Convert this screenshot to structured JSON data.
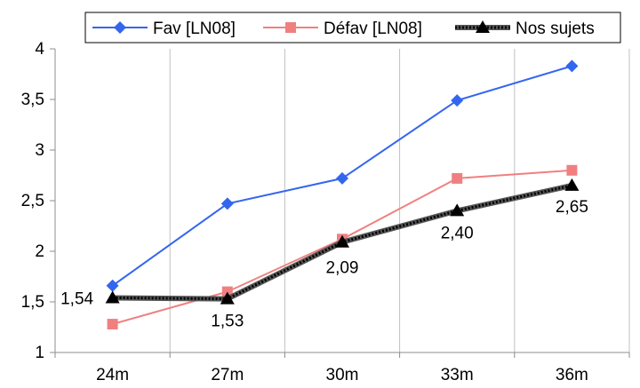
{
  "chart_data": {
    "type": "line",
    "categories": [
      "24m",
      "27m",
      "30m",
      "33m",
      "36m"
    ],
    "ylim": [
      1,
      4
    ],
    "yticks": [
      "1",
      "1,5",
      "2",
      "2,5",
      "3",
      "3,5",
      "4"
    ],
    "ytick_values": [
      1,
      1.5,
      2,
      2.5,
      3,
      3.5,
      4
    ],
    "grid": "vertical",
    "legend_position": "top",
    "series": [
      {
        "name": "Fav [LN08]",
        "values": [
          1.66,
          2.47,
          2.72,
          3.49,
          3.83
        ],
        "color": "#3366ee",
        "marker": "diamond"
      },
      {
        "name": "Défav [LN08]",
        "values": [
          1.28,
          1.6,
          2.12,
          2.72,
          2.8
        ],
        "color": "#f08080",
        "marker": "square"
      },
      {
        "name": "Nos sujets",
        "values": [
          1.54,
          1.53,
          2.09,
          2.4,
          2.65
        ],
        "color": "#000000",
        "marker": "triangle",
        "data_labels": [
          "1,54",
          "1,53",
          "2,09",
          "2,40",
          "2,65"
        ]
      }
    ]
  }
}
